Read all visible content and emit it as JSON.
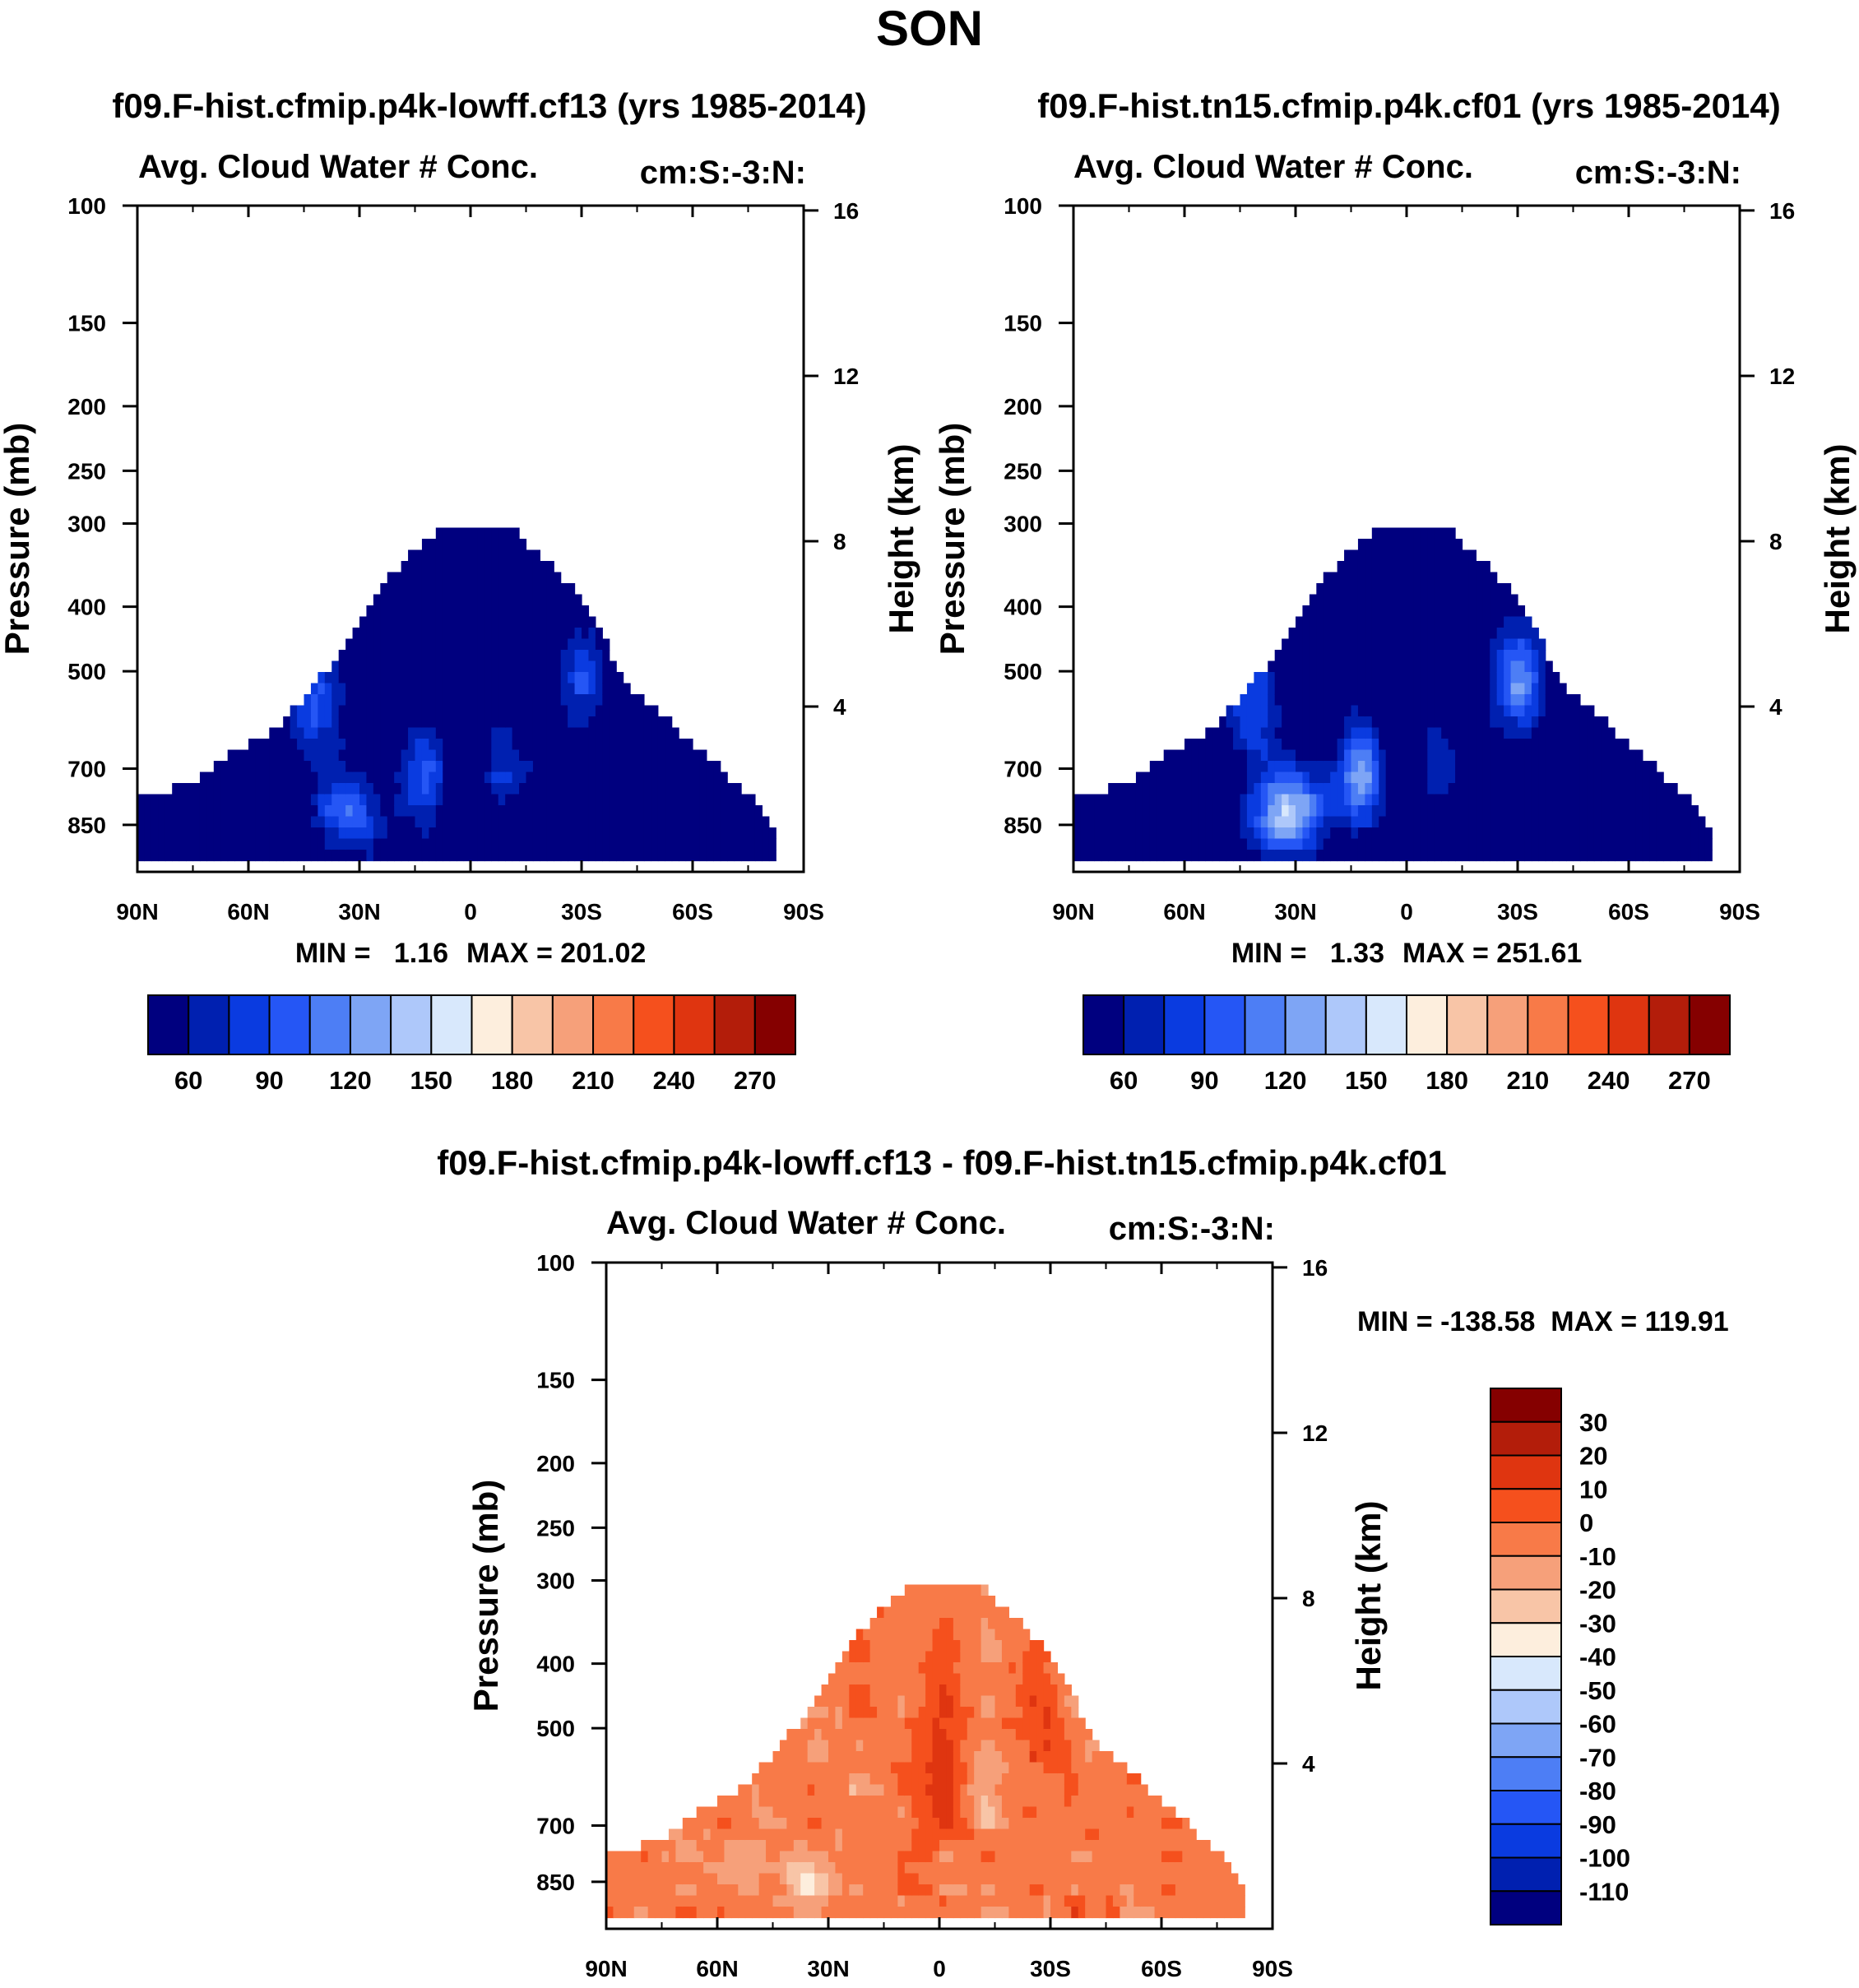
{
  "figure": {
    "title": "SON",
    "diff_title": "f09.F-hist.cfmip.p4k-lowff.cf13 - f09.F-hist.tn15.cfmip.p4k.cf01"
  },
  "chart_data": [
    {
      "type": "heatmap",
      "case_title": "f09.F-hist.cfmip.p4k-lowff.cf13 (yrs 1985-2014)",
      "title": "Avg. Cloud Water # Conc.",
      "units": "cm:S:-3:N:",
      "ylabel": "Pressure (mb)",
      "y2label": "Height (km)",
      "x_ticks": [
        "90N",
        "60N",
        "30N",
        "0",
        "30S",
        "60S",
        "90S"
      ],
      "y_ticks": [
        100,
        150,
        200,
        250,
        300,
        400,
        500,
        700,
        850
      ],
      "y2_ticks": [
        16,
        12,
        8,
        4
      ],
      "xlim": [
        90,
        -90
      ],
      "ylim": [
        100,
        1000
      ],
      "log_y": true,
      "min_label": "MIN =   1.16",
      "max_label": "MAX = 201.02",
      "colorbar": {
        "orientation": "horizontal",
        "labels": [
          "60",
          "90",
          "120",
          "150",
          "180",
          "210",
          "240",
          "270"
        ],
        "levels": [
          45,
          60,
          75,
          90,
          105,
          120,
          135,
          150,
          165,
          180,
          195,
          210,
          225,
          240,
          255,
          270
        ]
      }
    },
    {
      "type": "heatmap",
      "case_title": "f09.F-hist.tn15.cfmip.p4k.cf01 (yrs 1985-2014)",
      "title": "Avg. Cloud Water # Conc.",
      "units": "cm:S:-3:N:",
      "ylabel": "Pressure (mb)",
      "y2label": "Height (km)",
      "x_ticks": [
        "90N",
        "60N",
        "30N",
        "0",
        "30S",
        "60S",
        "90S"
      ],
      "y_ticks": [
        100,
        150,
        200,
        250,
        300,
        400,
        500,
        700,
        850
      ],
      "y2_ticks": [
        16,
        12,
        8,
        4
      ],
      "xlim": [
        90,
        -90
      ],
      "ylim": [
        100,
        1000
      ],
      "log_y": true,
      "min_label": "MIN =   1.33",
      "max_label": "MAX = 251.61",
      "colorbar": {
        "orientation": "horizontal",
        "labels": [
          "60",
          "90",
          "120",
          "150",
          "180",
          "210",
          "240",
          "270"
        ],
        "levels": [
          45,
          60,
          75,
          90,
          105,
          120,
          135,
          150,
          165,
          180,
          195,
          210,
          225,
          240,
          255,
          270
        ]
      }
    },
    {
      "type": "heatmap",
      "title": "Avg. Cloud Water # Conc.",
      "units": "cm:S:-3:N:",
      "ylabel": "Pressure (mb)",
      "y2label": "Height (km)",
      "x_ticks": [
        "90N",
        "60N",
        "30N",
        "0",
        "30S",
        "60S",
        "90S"
      ],
      "y_ticks": [
        100,
        150,
        200,
        250,
        300,
        400,
        500,
        700,
        850
      ],
      "y2_ticks": [
        16,
        12,
        8,
        4
      ],
      "xlim": [
        90,
        -90
      ],
      "ylim": [
        100,
        1000
      ],
      "log_y": true,
      "stats_label": "MIN = -138.58  MAX = 119.91",
      "colorbar": {
        "orientation": "vertical",
        "labels": [
          "30",
          "20",
          "10",
          "0",
          "-10",
          "-20",
          "-30",
          "-40",
          "-50",
          "-60",
          "-70",
          "-80",
          "-90",
          "-100",
          "-110"
        ]
      }
    }
  ],
  "colors": {
    "palette": [
      "#00007f",
      "#0020b0",
      "#0a3be0",
      "#2556f5",
      "#4d7ef5",
      "#7ea5f5",
      "#aec8fa",
      "#d8e8fc",
      "#fdeedd",
      "#f8c5a7",
      "#f6a07a",
      "#f87a48",
      "#f5501d",
      "#df3510",
      "#b31d0a",
      "#850000"
    ],
    "diff_palette": [
      "#850000",
      "#b31d0a",
      "#df3510",
      "#f5501d",
      "#f87a48",
      "#f6a07a",
      "#f8c5a7",
      "#fdeedd",
      "#d8e8fc",
      "#aec8fa",
      "#7ea5f5",
      "#4d7ef5",
      "#2556f5",
      "#0a3be0",
      "#0020b0",
      "#00007f"
    ]
  }
}
